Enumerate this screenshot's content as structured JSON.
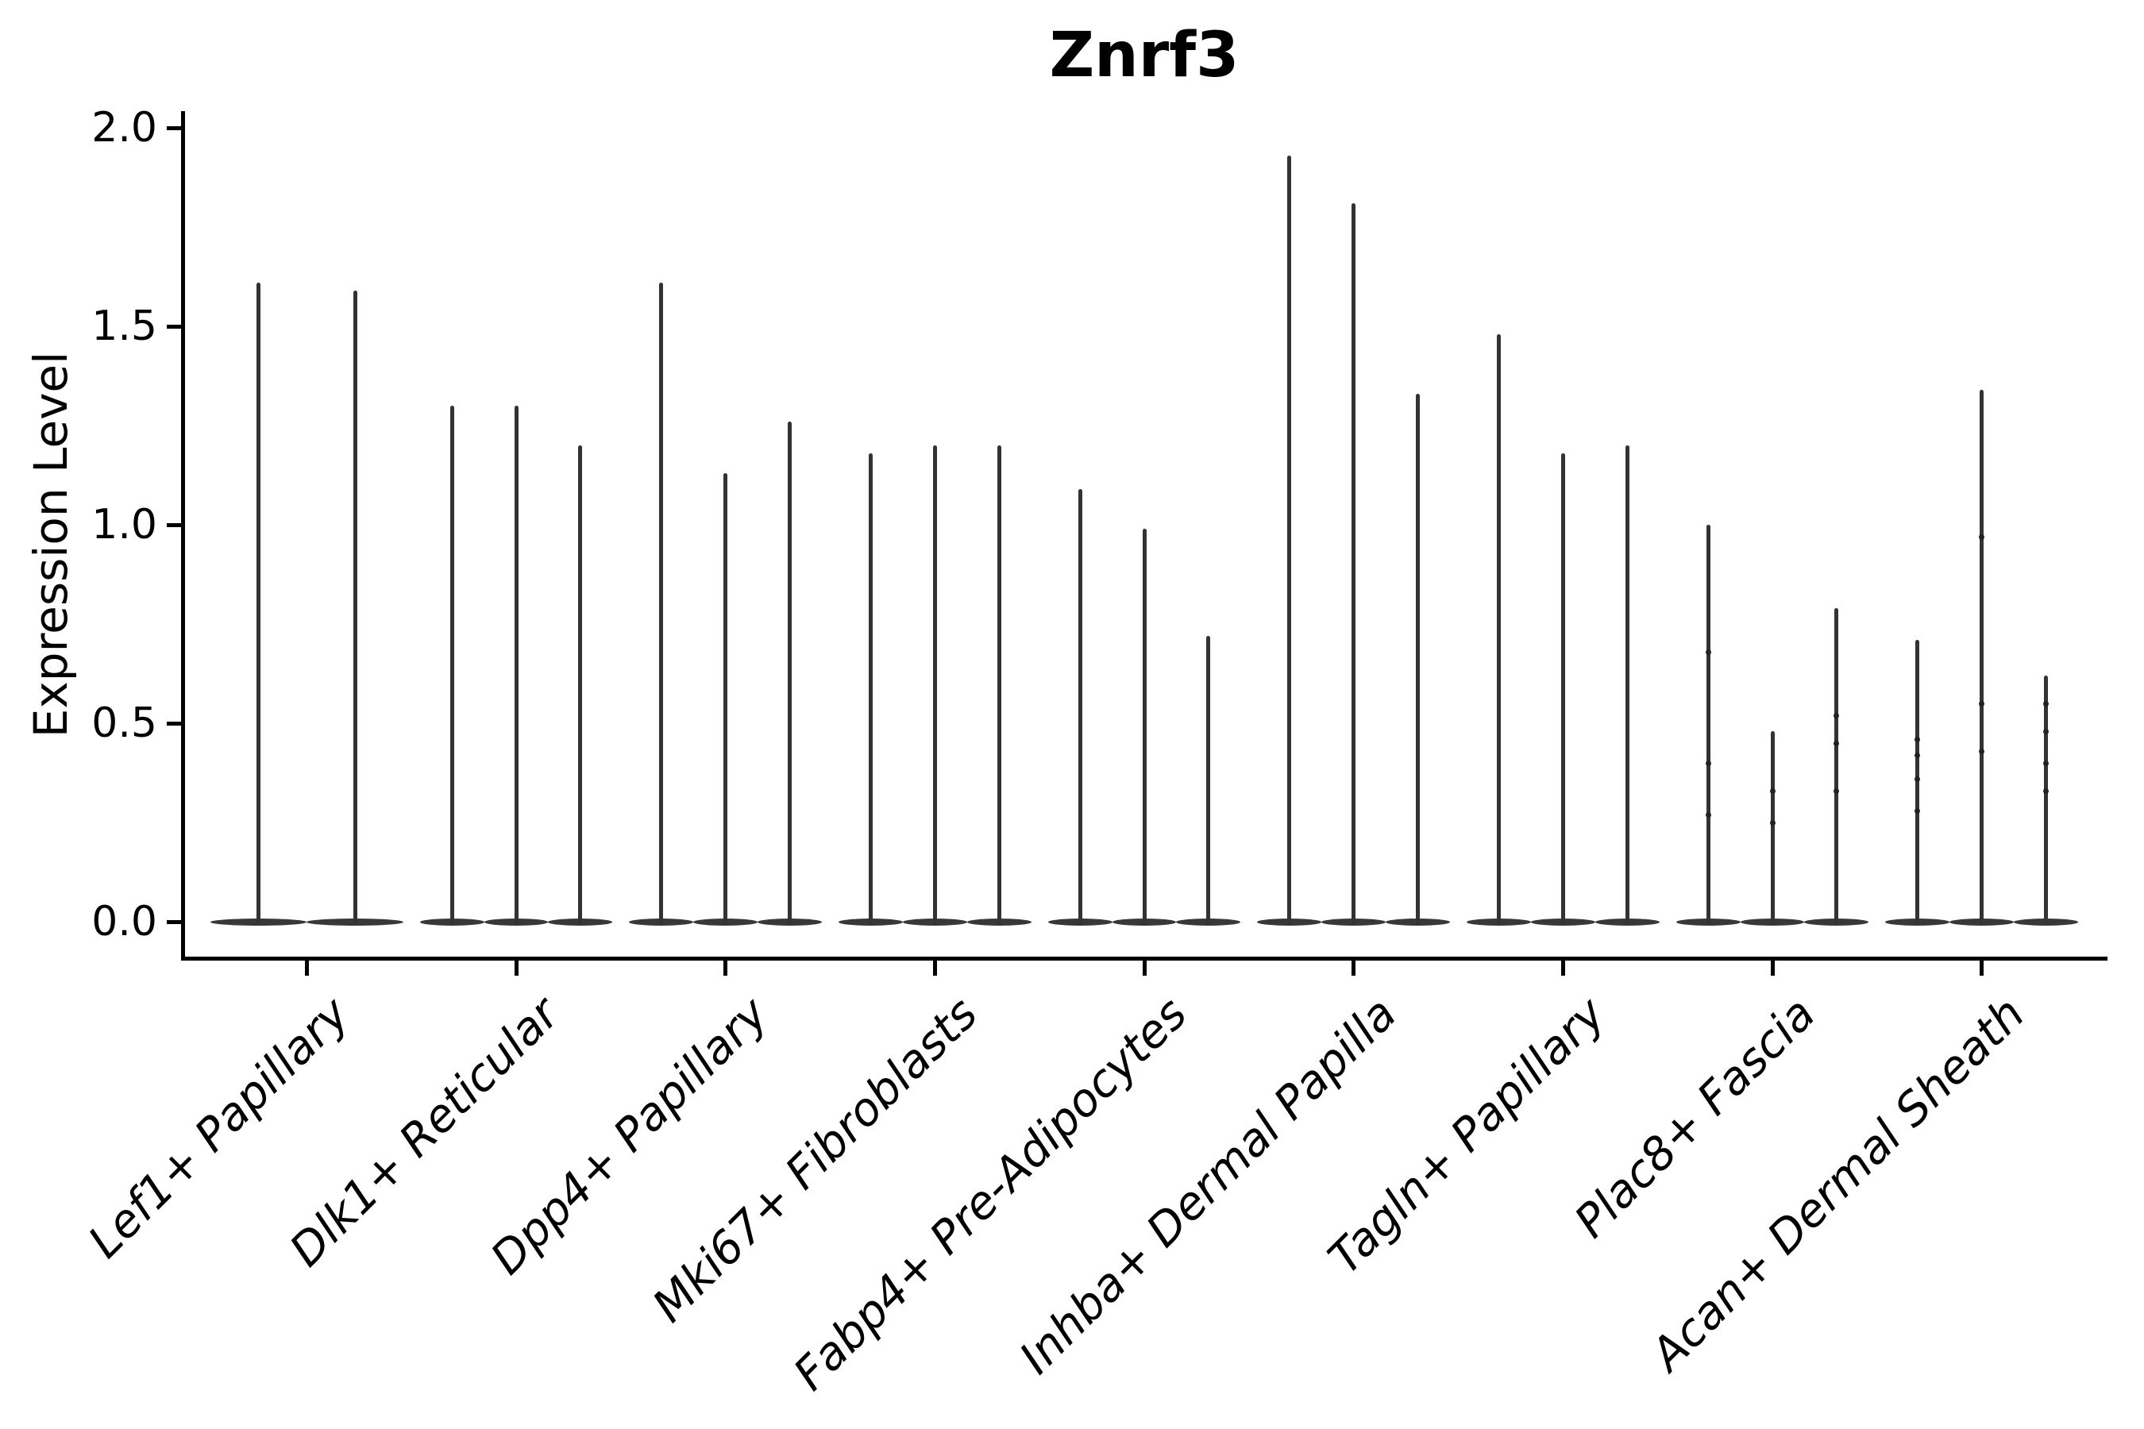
{
  "title": "Znrf3",
  "y_axis": {
    "label": "Expression Level",
    "tick_labels": [
      "0.0",
      "0.5",
      "1.0",
      "1.5",
      "2.0"
    ]
  },
  "chart_data": {
    "type": "violin",
    "title": "Znrf3",
    "xlabel": "",
    "ylabel": "Expression Level",
    "ylim": [
      0.0,
      2.0
    ],
    "yticks": [
      0.0,
      0.5,
      1.0,
      1.5,
      2.0
    ],
    "grid": false,
    "legend": "none",
    "description": "Zero-inflated expression violins: each violin is a flat body at 0 with a thin spike up to the max expression value.",
    "categories": [
      "Lef1+ Papillary",
      "Dlk1+ Reticular",
      "Dpp4+ Papillary",
      "Mki67+ Fibroblasts",
      "Fabp4+ Pre-Adipocytes",
      "Inhba+ Dermal Papilla",
      "Tagln+ Papillary",
      "Plac8+ Fascia",
      "Acan+ Dermal Sheath"
    ],
    "groups": [
      {
        "category": "Lef1+ Papillary",
        "violins": [
          {
            "max": 1.61
          },
          {
            "max": 1.59
          }
        ]
      },
      {
        "category": "Dlk1+ Reticular",
        "violins": [
          {
            "max": 1.3
          },
          {
            "max": 1.3
          },
          {
            "max": 1.2
          }
        ]
      },
      {
        "category": "Dpp4+ Papillary",
        "violins": [
          {
            "max": 1.61
          },
          {
            "max": 1.13
          },
          {
            "max": 1.26
          }
        ]
      },
      {
        "category": "Mki67+ Fibroblasts",
        "violins": [
          {
            "max": 1.18
          },
          {
            "max": 1.2
          },
          {
            "max": 1.2
          }
        ]
      },
      {
        "category": "Fabp4+ Pre-Adipocytes",
        "violins": [
          {
            "max": 1.09
          },
          {
            "max": 0.99
          },
          {
            "max": 0.72
          }
        ]
      },
      {
        "category": "Inhba+ Dermal Papilla",
        "violins": [
          {
            "max": 1.93
          },
          {
            "max": 1.81
          },
          {
            "max": 1.33
          }
        ]
      },
      {
        "category": "Tagln+ Papillary",
        "violins": [
          {
            "max": 1.48
          },
          {
            "max": 1.18
          },
          {
            "max": 1.2
          }
        ]
      },
      {
        "category": "Plac8+ Fascia",
        "violins": [
          {
            "max": 1.0,
            "dots": [
              0.27,
              0.4,
              0.68
            ]
          },
          {
            "max": 0.48,
            "dots": [
              0.25,
              0.33
            ]
          },
          {
            "max": 0.79,
            "dots": [
              0.33,
              0.45,
              0.52
            ]
          }
        ]
      },
      {
        "category": "Acan+ Dermal Sheath",
        "violins": [
          {
            "max": 0.71,
            "dots": [
              0.28,
              0.36,
              0.42,
              0.46
            ]
          },
          {
            "max": 1.34,
            "dots": [
              0.43,
              0.55,
              0.97
            ]
          },
          {
            "max": 0.62,
            "dots": [
              0.33,
              0.4,
              0.48,
              0.55
            ]
          }
        ]
      }
    ]
  },
  "style": {
    "violin_color": "#333333",
    "axis_color": "#000000",
    "background": "#ffffff"
  }
}
